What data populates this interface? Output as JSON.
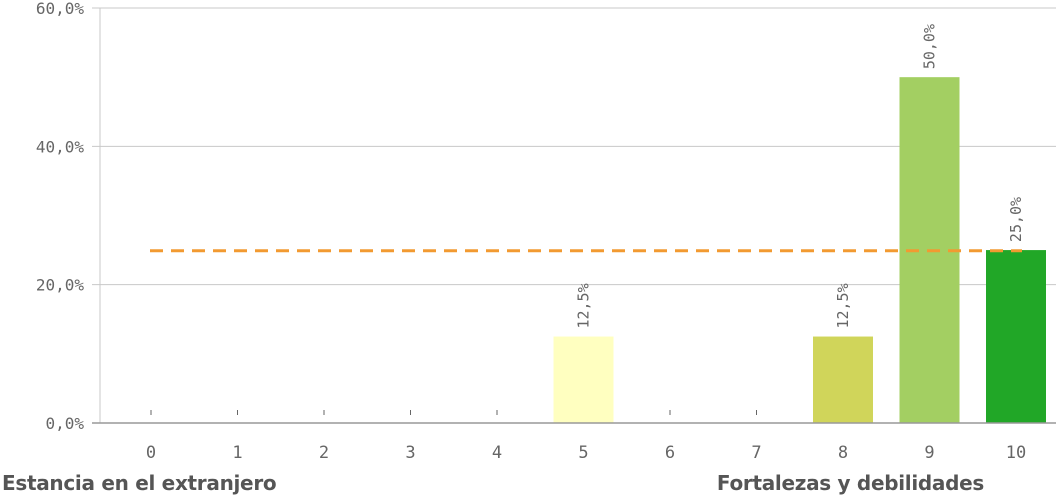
{
  "chart_data": {
    "type": "bar",
    "categories": [
      "0",
      "1",
      "2",
      "3",
      "4",
      "5",
      "6",
      "7",
      "8",
      "9",
      "10"
    ],
    "values": [
      0,
      0,
      0,
      0,
      0,
      12.5,
      0,
      0,
      12.5,
      50.0,
      25.0
    ],
    "value_labels": [
      "",
      "",
      "",
      "",
      "",
      "12,5%",
      "",
      "",
      "12,5%",
      "50,0%",
      "25,0%"
    ],
    "bar_colors": [
      "#cccccc",
      "#cccccc",
      "#cccccc",
      "#cccccc",
      "#cccccc",
      "#ffffc0",
      "#cccccc",
      "#cccccc",
      "#d0d55a",
      "#a3cf62",
      "#21a727"
    ],
    "y_ticks": [
      0,
      20,
      40,
      60
    ],
    "y_tick_labels": [
      "0,0%",
      "20,0%",
      "40,0%",
      "60,0%"
    ],
    "ylim": [
      0,
      60
    ],
    "reference_line": {
      "value": 24.9,
      "color": "#f29a31",
      "style": "dashed"
    },
    "grid": true,
    "title": "",
    "xlabel": "",
    "ylabel": ""
  },
  "captions": {
    "left": "Estancia en el extranjero",
    "right": "Fortalezas y debilidades"
  },
  "colors": {
    "gridline": "#c8c8c8",
    "axis_text": "#666666",
    "baseline": "#999999",
    "caption_text": "#555555"
  }
}
